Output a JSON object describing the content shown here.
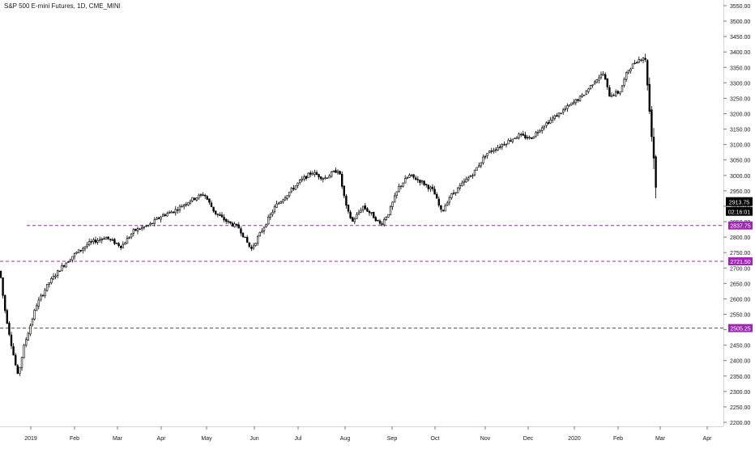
{
  "chart_title": "S&P 500 E-mini Futures, 1D, CME_MINI",
  "colors": {
    "candle": "#000000",
    "background": "#ffffff",
    "axis_text": "#131722",
    "level_line": "#9c27b0",
    "level_tag": "#9c27b0",
    "last_tag": "#000000"
  },
  "chart_data": {
    "type": "candlestick",
    "title": "S&P 500 E-mini Futures, 1D, CME_MINI",
    "x_axis_labels": [
      "2019",
      "Feb",
      "Mar",
      "Apr",
      "May",
      "Jun",
      "Jul",
      "Aug",
      "Sep",
      "Oct",
      "Nov",
      "Dec",
      "2020",
      "Feb",
      "Mar",
      "Apr"
    ],
    "y_ticks": [
      2200,
      2250,
      2300,
      2350,
      2400,
      2450,
      2500,
      2550,
      2600,
      2650,
      2700,
      2750,
      2800,
      2850,
      2900,
      2950,
      3000,
      3050,
      3100,
      3150,
      3200,
      3250,
      3300,
      3350,
      3400,
      3450,
      3500,
      3550
    ],
    "y_range": [
      2180,
      3580
    ],
    "price_path": [
      [
        0,
        2690
      ],
      [
        5,
        2580
      ],
      [
        12,
        2480
      ],
      [
        18,
        2400
      ],
      [
        22,
        2350
      ],
      [
        30,
        2450
      ],
      [
        45,
        2580
      ],
      [
        60,
        2650
      ],
      [
        75,
        2700
      ],
      [
        90,
        2740
      ],
      [
        110,
        2780
      ],
      [
        130,
        2800
      ],
      [
        150,
        2770
      ],
      [
        165,
        2820
      ],
      [
        185,
        2840
      ],
      [
        200,
        2870
      ],
      [
        215,
        2885
      ],
      [
        235,
        2920
      ],
      [
        252,
        2940
      ],
      [
        265,
        2880
      ],
      [
        280,
        2850
      ],
      [
        295,
        2830
      ],
      [
        310,
        2760
      ],
      [
        325,
        2830
      ],
      [
        340,
        2900
      ],
      [
        355,
        2940
      ],
      [
        370,
        2980
      ],
      [
        385,
        3010
      ],
      [
        400,
        2990
      ],
      [
        418,
        3020
      ],
      [
        428,
        2890
      ],
      [
        435,
        2850
      ],
      [
        448,
        2900
      ],
      [
        460,
        2870
      ],
      [
        470,
        2840
      ],
      [
        480,
        2880
      ],
      [
        492,
        2960
      ],
      [
        505,
        3000
      ],
      [
        520,
        2980
      ],
      [
        535,
        2950
      ],
      [
        545,
        2880
      ],
      [
        555,
        2930
      ],
      [
        570,
        2970
      ],
      [
        585,
        3010
      ],
      [
        600,
        3070
      ],
      [
        620,
        3100
      ],
      [
        640,
        3130
      ],
      [
        655,
        3120
      ],
      [
        670,
        3160
      ],
      [
        690,
        3200
      ],
      [
        710,
        3240
      ],
      [
        720,
        3260
      ],
      [
        735,
        3310
      ],
      [
        745,
        3330
      ],
      [
        752,
        3260
      ],
      [
        765,
        3270
      ],
      [
        775,
        3340
      ],
      [
        785,
        3370
      ],
      [
        795,
        3385
      ],
      [
        798,
        3350
      ],
      [
        802,
        3200
      ],
      [
        806,
        3100
      ],
      [
        809,
        2980
      ],
      [
        812,
        2913.75
      ]
    ],
    "last_price": "2913.75",
    "countdown": "02:16:01",
    "levels": [
      {
        "price": 2837.75,
        "label": "2837.75"
      },
      {
        "price": 2721.5,
        "label": "2721.50"
      },
      {
        "price": 2505.25,
        "label": "2505.25"
      }
    ]
  }
}
